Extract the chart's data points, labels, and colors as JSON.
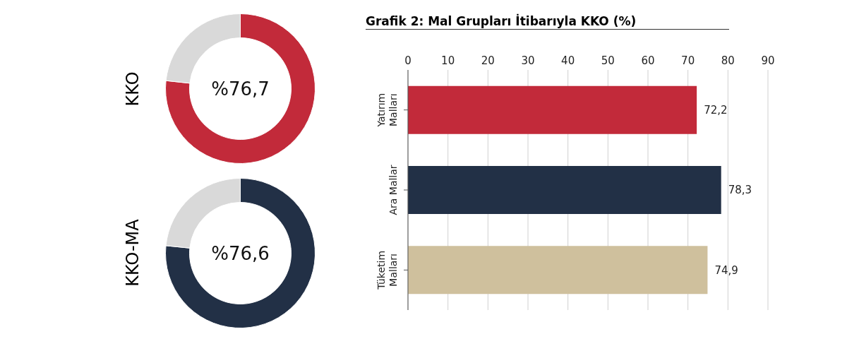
{
  "chart_data": [
    {
      "type": "donut",
      "ylabel": "KKO",
      "categories": [
        null,
        null
      ],
      "values": [
        76.7,
        23.3
      ],
      "colors": [
        "#c22a3a",
        "#d9d9d9"
      ],
      "value_labels": [
        "%76,7",
        null
      ]
    },
    {
      "type": "donut",
      "ylabel": "KKO-MA",
      "categories": [
        null,
        null
      ],
      "values": [
        76.6,
        23.4
      ],
      "colors": [
        "#223046",
        "#d9d9d9"
      ],
      "value_labels": [
        "%76,6",
        null
      ]
    },
    {
      "type": "bar",
      "orientation": "horizontal",
      "title": "Grafik 2: Mal Grupları İtibarıyla KKO (%)",
      "categories": [
        "Yatırım Malları",
        "Ara Mallar",
        "Tüketim Malları"
      ],
      "values": [
        72.2,
        78.3,
        74.9
      ],
      "colors": [
        "#c22a3a",
        "#223046",
        "#cfc09d"
      ],
      "value_labels": [
        "72,2",
        "78,3",
        "74,9"
      ],
      "xlim": [
        0,
        90
      ],
      "xticks": [
        0,
        10,
        20,
        30,
        40,
        50,
        60,
        70,
        80,
        90
      ],
      "grid": "x"
    }
  ]
}
